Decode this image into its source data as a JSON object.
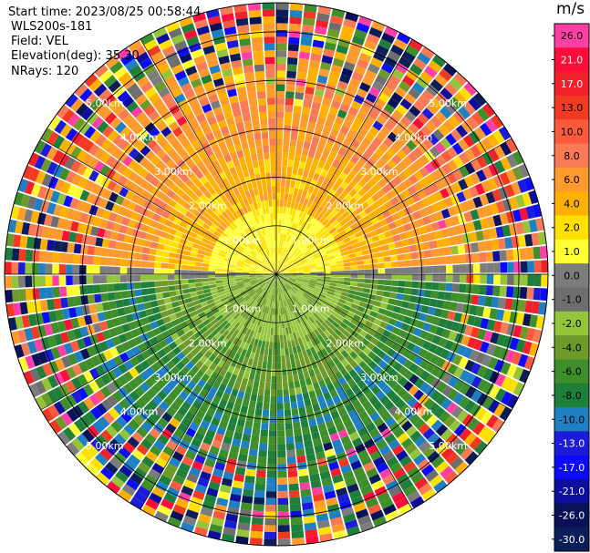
{
  "header": {
    "start_time": "Start time: 2023/08/25 00:58:44",
    "instrument": "WLS200s-181",
    "field": "Field: VEL",
    "elevation": "Elevation(deg): 35.30",
    "nrays": "NRays: 120"
  },
  "colorbar": {
    "unit": "m/s",
    "labels": [
      "26.0",
      "21.0",
      "17.0",
      "13.0",
      "10.0",
      "8.0",
      "6.0",
      "4.0",
      "2.0",
      "1.0",
      "0.0",
      "-1.0",
      "-2.0",
      "-4.0",
      "-6.0",
      "-8.0",
      "-10.0",
      "-13.0",
      "-17.0",
      "-21.0",
      "-26.0",
      "-30.0"
    ],
    "colors": [
      "#ff3fa5",
      "#ff0d3a",
      "#f2202a",
      "#f23a22",
      "#fb5a3c",
      "#f97a55",
      "#ff9a2c",
      "#ffb000",
      "#ffe000",
      "#ffff33",
      "#7c7c7c",
      "#6e6e6e",
      "#94c43a",
      "#6e9a2a",
      "#3e8f2a",
      "#1e7f3a",
      "#1e7fc3",
      "#1b1bd9",
      "#0b0bfa",
      "#0d0d9e",
      "#091258",
      "#0b1e58"
    ]
  },
  "range_labels": [
    "1.00km",
    "2.00km",
    "3.00km",
    "4.00km",
    "5.00km"
  ],
  "rings_km": [
    1,
    2,
    3,
    4,
    5
  ],
  "max_range_km": 5.6,
  "n_rays": 120
}
